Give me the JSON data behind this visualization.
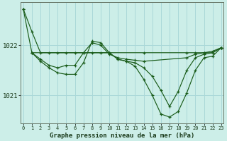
{
  "background_color": "#cceee8",
  "grid_color": "#aad8d8",
  "line_color": "#1a5c1a",
  "title": "Graphe pression niveau de la mer (hPa)",
  "yticks": [
    1021,
    1022
  ],
  "ylim": [
    1020.45,
    1022.85
  ],
  "xlim": [
    -0.3,
    23.3
  ],
  "figsize": [
    3.2,
    2.0
  ],
  "dpi": 100,
  "lines": [
    {
      "x": [
        0,
        1,
        2,
        3,
        4,
        5,
        6,
        7,
        8,
        9,
        10,
        14,
        19,
        20,
        21,
        22,
        23
      ],
      "y": [
        1022.72,
        1022.27,
        1021.85,
        1021.85,
        1021.85,
        1021.85,
        1021.85,
        1021.85,
        1021.85,
        1021.85,
        1021.85,
        1021.85,
        1021.85,
        1021.85,
        1021.85,
        1021.85,
        1021.95
      ]
    },
    {
      "x": [
        1,
        2,
        3,
        4,
        5,
        6,
        7,
        8,
        9,
        10,
        11,
        12,
        13,
        14,
        19,
        20,
        21,
        22,
        23
      ],
      "y": [
        1021.85,
        1021.72,
        1021.6,
        1021.55,
        1021.6,
        1021.6,
        1021.85,
        1022.05,
        1022.0,
        1021.82,
        1021.75,
        1021.72,
        1021.7,
        1021.68,
        1021.75,
        1021.82,
        1021.85,
        1021.88,
        1021.95
      ]
    },
    {
      "x": [
        1,
        2,
        3,
        4,
        5,
        6,
        7,
        8,
        9,
        10,
        11,
        12,
        13,
        14,
        15,
        16,
        17,
        18,
        19,
        20,
        21,
        22,
        23
      ],
      "y": [
        1021.85,
        1021.68,
        1021.55,
        1021.45,
        1021.42,
        1021.42,
        1021.65,
        1022.08,
        1022.05,
        1021.85,
        1021.72,
        1021.68,
        1021.65,
        1021.55,
        1021.38,
        1021.1,
        1020.78,
        1021.08,
        1021.5,
        1021.75,
        1021.82,
        1021.85,
        1021.95
      ]
    },
    {
      "x": [
        0,
        1,
        10,
        11,
        12,
        13,
        14,
        15,
        16,
        17,
        18,
        19,
        20,
        21,
        22,
        23
      ],
      "y": [
        1022.72,
        1021.85,
        1021.85,
        1021.72,
        1021.68,
        1021.58,
        1021.32,
        1021.0,
        1020.63,
        1020.57,
        1020.68,
        1021.05,
        1021.5,
        1021.75,
        1021.78,
        1021.95
      ]
    }
  ]
}
